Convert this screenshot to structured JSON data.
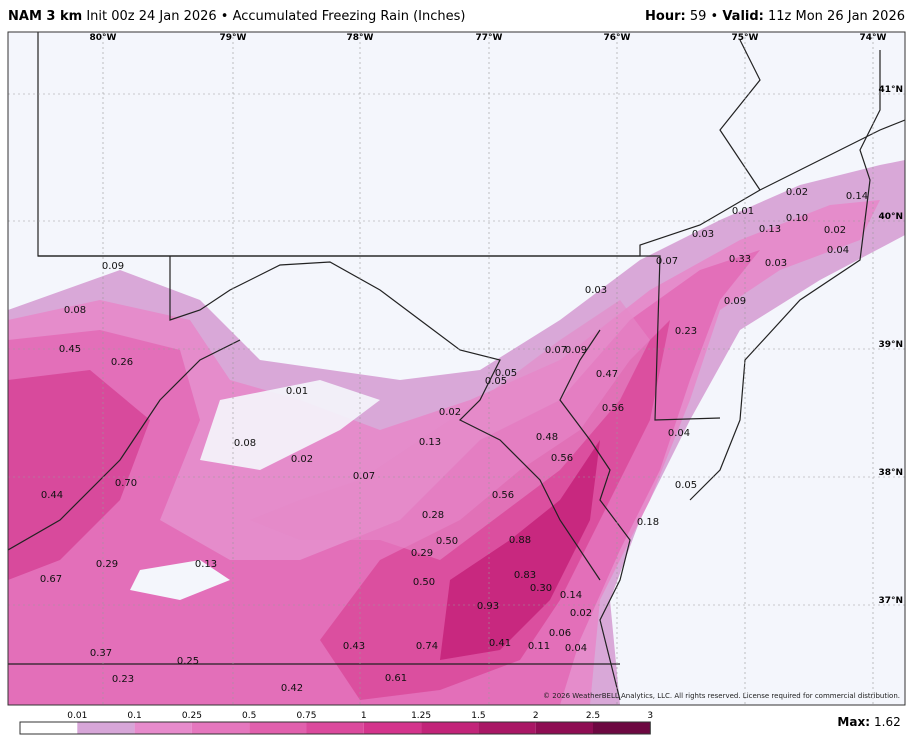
{
  "header": {
    "model": "NAM 3 km",
    "init_field": "Init 00z 24 Jan 2026 • Accumulated Freezing Rain (Inches)",
    "hour_label": "Hour:",
    "hour_value": "59 •",
    "valid_label": "Valid:",
    "valid_value": "11z Mon 26 Jan 2026"
  },
  "lon_labels": [
    "80°W",
    "79°W",
    "78°W",
    "77°W",
    "76°W",
    "75°W",
    "74°W"
  ],
  "lat_labels": [
    "41°N",
    "40°N",
    "39°N",
    "38°N",
    "37°N"
  ],
  "point_labels": [
    "0.02",
    "0.14",
    "0.01",
    "0.10",
    "0.13",
    "0.02",
    "0.03",
    "0.04",
    "0.09",
    "0.07",
    "0.33",
    "0.03",
    "0.03",
    "0.09",
    "0.08",
    "0.23",
    "0.45",
    "0.26",
    "0.07",
    "0.09",
    "0.05",
    "0.05",
    "0.47",
    "0.01",
    "0.56",
    "0.02",
    "0.13",
    "0.48",
    "0.04",
    "0.08",
    "0.02",
    "0.56",
    "0.07",
    "0.70",
    "0.05",
    "0.44",
    "0.56",
    "0.28",
    "0.18",
    "0.50",
    "0.88",
    "0.29",
    "0.29",
    "0.13",
    "0.83",
    "0.67",
    "0.50",
    "0.30",
    "0.14",
    "0.93",
    "0.02",
    "0.06",
    "0.43",
    "0.74",
    "0.41",
    "0.11",
    "0.04",
    "0.37",
    "0.25",
    "0.61",
    "0.23",
    "0.42"
  ],
  "copyright": "© 2026 WeatherBELL Analytics, LLC. All rights reserved. License required for commercial distribution.",
  "colorbar": {
    "labels": [
      "0.01",
      "0.1",
      "0.25",
      "0.5",
      "0.75",
      "1",
      "1.25",
      "1.5",
      "2",
      "2.5",
      "3"
    ],
    "colors": [
      "#ffffff",
      "#d7a6d8",
      "#e78bcc",
      "#e577be",
      "#e160ad",
      "#db4a9d",
      "#d4348c",
      "#c22479",
      "#a91765",
      "#8e0d53",
      "#6d0841"
    ]
  },
  "max_label": "Max:",
  "max_value": "1.62"
}
